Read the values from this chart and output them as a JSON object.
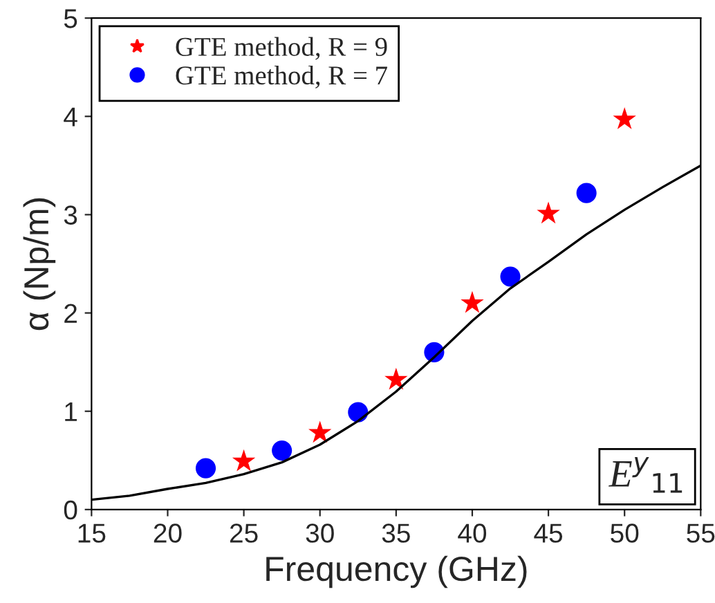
{
  "chart_data": {
    "type": "scatter",
    "xlabel": "Frequency (GHz)",
    "ylabel": "α (Np/m)",
    "xlim": [
      15,
      55
    ],
    "xticks": [
      15,
      20,
      25,
      30,
      35,
      40,
      45,
      50,
      55
    ],
    "ylim": [
      0,
      5
    ],
    "yticks": [
      0,
      1,
      2,
      3,
      4,
      5
    ],
    "legend": "top left",
    "grid": false,
    "annotations": [
      "E$^{y}$$_{11}$"
    ],
    "series": [
      {
        "name": "GTE method, R = 9",
        "marker": "star",
        "color": "#ff0000",
        "x": [
          25,
          30,
          35,
          40,
          45,
          50
        ],
        "values": [
          0.49,
          0.78,
          1.32,
          2.1,
          3.01,
          3.97
        ]
      },
      {
        "name": "GTE method, R = 7",
        "marker": "circle",
        "color": "#0000ff",
        "x": [
          22.5,
          27.5,
          32.5,
          37.5,
          42.5,
          47.5
        ],
        "values": [
          0.42,
          0.6,
          0.99,
          1.6,
          2.37,
          3.22
        ]
      },
      {
        "type": "line",
        "marker": "none",
        "line_style": "solid",
        "color": "#000000",
        "x": [
          15,
          17.5,
          20,
          22.5,
          25,
          27.5,
          30,
          32.5,
          35,
          37.5,
          40,
          42.5,
          45,
          47.5,
          50,
          52.5,
          55
        ],
        "values": [
          0.1,
          0.14,
          0.21,
          0.27,
          0.36,
          0.48,
          0.66,
          0.9,
          1.2,
          1.55,
          1.92,
          2.25,
          2.52,
          2.8,
          3.05,
          3.28,
          3.5
        ]
      }
    ]
  }
}
